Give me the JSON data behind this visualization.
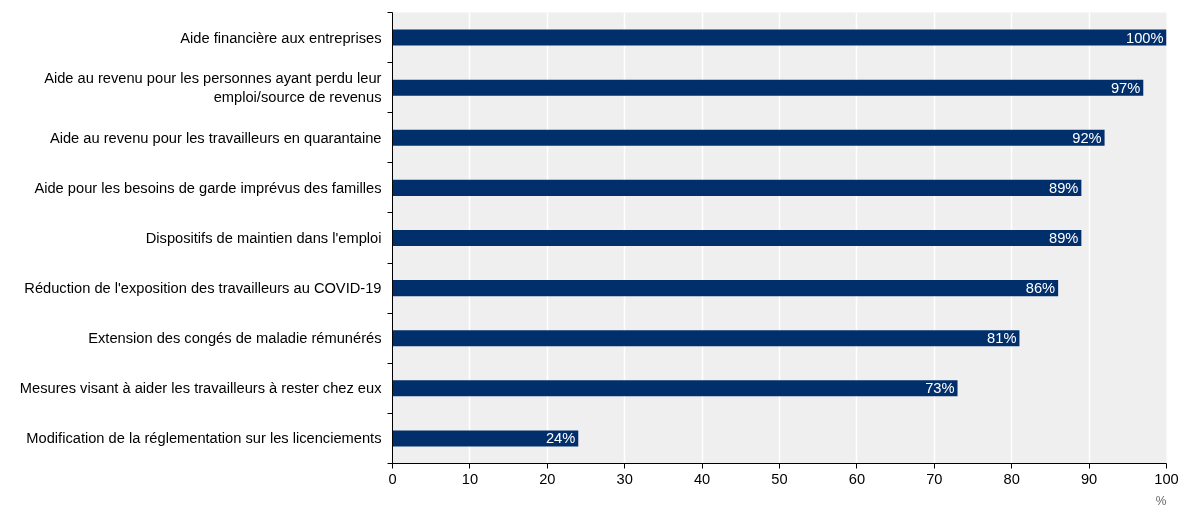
{
  "chart_data": {
    "type": "bar",
    "orientation": "horizontal",
    "xlabel": "%",
    "categories": [
      "Aide financière aux entreprises",
      "Aide au revenu pour les personnes ayant perdu leur emploi/source de revenus",
      "Aide au revenu pour les travailleurs en quarantaine",
      "Aide pour les besoins de garde imprévus des familles",
      "Dispositifs de maintien dans l'emploi",
      "Réduction de l'exposition des travailleurs au COVID-19",
      "Extension des congés de maladie rémunérés",
      "Mesures visant à aider les travailleurs à rester chez eux",
      "Modification de la réglementation sur les licenciements"
    ],
    "values": [
      100,
      97,
      92,
      89,
      89,
      86,
      81,
      73,
      24
    ],
    "value_labels": [
      "100%",
      "97%",
      "92%",
      "89%",
      "89%",
      "86%",
      "81%",
      "73%",
      "24%"
    ],
    "color": "#002f6c",
    "xlim": [
      0,
      100
    ],
    "xticks": [
      0,
      10,
      20,
      30,
      40,
      50,
      60,
      70,
      80,
      90,
      100
    ],
    "grid": "x"
  }
}
